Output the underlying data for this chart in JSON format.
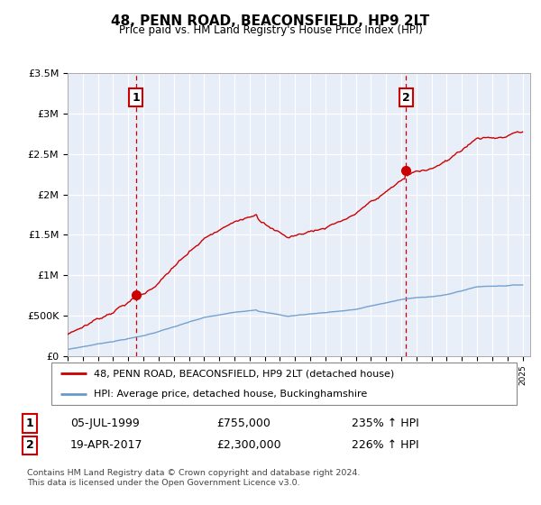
{
  "title": "48, PENN ROAD, BEACONSFIELD, HP9 2LT",
  "subtitle": "Price paid vs. HM Land Registry's House Price Index (HPI)",
  "legend_line1": "48, PENN ROAD, BEACONSFIELD, HP9 2LT (detached house)",
  "legend_line2": "HPI: Average price, detached house, Buckinghamshire",
  "purchase1_label": "1",
  "purchase1_date": "05-JUL-1999",
  "purchase1_price": "£755,000",
  "purchase1_hpi": "235% ↑ HPI",
  "purchase1_year": 1999.5,
  "purchase1_value": 755000,
  "purchase2_label": "2",
  "purchase2_date": "19-APR-2017",
  "purchase2_price": "£2,300,000",
  "purchase2_hpi": "226% ↑ HPI",
  "purchase2_year": 2017.3,
  "purchase2_value": 2300000,
  "footer": "Contains HM Land Registry data © Crown copyright and database right 2024.\nThis data is licensed under the Open Government Licence v3.0.",
  "ylim": [
    0,
    3500000
  ],
  "xlim_start": 1995,
  "xlim_end": 2025.5,
  "red_color": "#cc0000",
  "blue_color": "#6699cc",
  "chart_bg": "#e8eef8",
  "background_color": "#ffffff",
  "grid_color": "#ffffff"
}
